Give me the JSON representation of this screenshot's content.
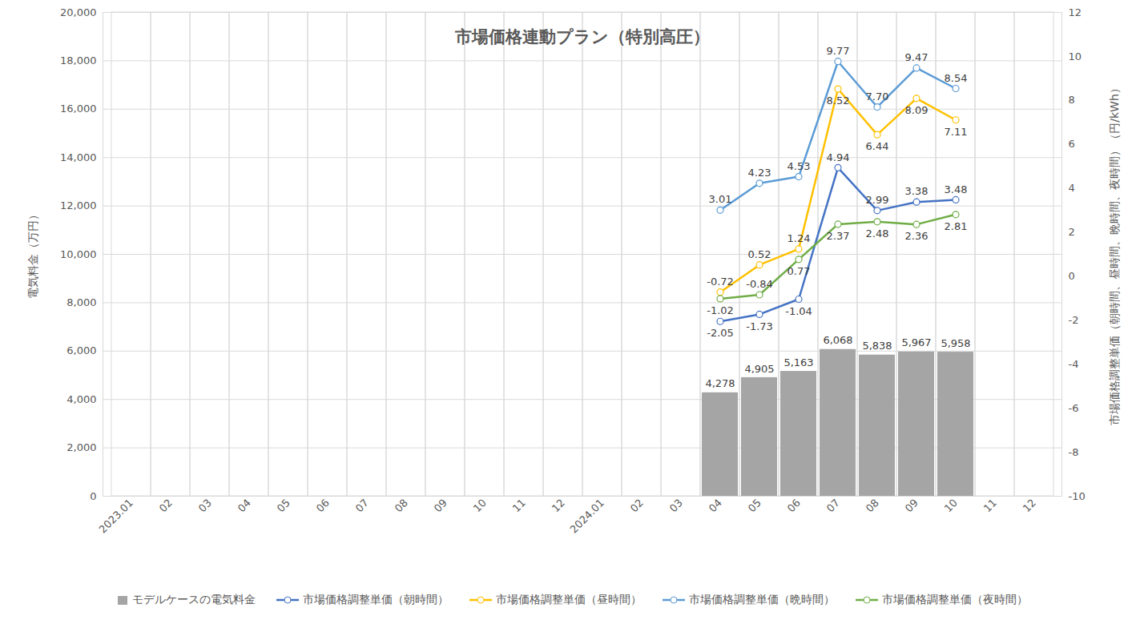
{
  "chart_data": {
    "type": "bar",
    "title": "市場価格連動プラン（特別高圧）",
    "categories": [
      "2023.01",
      "02",
      "03",
      "04",
      "05",
      "06",
      "07",
      "08",
      "09",
      "10",
      "11",
      "12",
      "2024.01",
      "02",
      "03",
      "04",
      "05",
      "06",
      "07",
      "08",
      "09",
      "10",
      "11",
      "12"
    ],
    "ylabel": "電気料金（万円）",
    "y2label": "市場価格調整単価（朝時間、昼時間、晩時間、夜時間）（円/kWh）",
    "ylim": [
      0,
      20000
    ],
    "yticks": [
      0,
      {
        "value": 2000,
        "label": "2,000"
      },
      {
        "value": 4000,
        "label": "4,000"
      },
      {
        "value": 6000,
        "label": "6,000"
      },
      {
        "value": 8000,
        "label": "8,000"
      },
      {
        "value": 10000,
        "label": "10,000"
      },
      {
        "value": 12000,
        "label": "12,000"
      },
      {
        "value": 14000,
        "label": "14,000"
      },
      {
        "value": 16000,
        "label": "16,000"
      },
      {
        "value": 18000,
        "label": "18,000"
      },
      {
        "value": 20000,
        "label": "20,000"
      }
    ],
    "y2lim": [
      -10,
      12
    ],
    "y2ticks": [
      -10,
      -8,
      -6,
      -4,
      -2,
      0,
      2,
      4,
      6,
      8,
      10,
      12
    ],
    "grid": true,
    "legend": "bottom",
    "data_labels": true,
    "series": [
      {
        "name": "モデルケースの電気料金",
        "type": "bar",
        "color": "#a5a5a5",
        "values": [
          null,
          null,
          null,
          null,
          null,
          null,
          null,
          null,
          null,
          null,
          null,
          null,
          null,
          null,
          null,
          4278,
          4905,
          5163,
          6068,
          5838,
          5967,
          5958,
          null,
          null
        ],
        "value_labels": [
          null,
          null,
          null,
          null,
          null,
          null,
          null,
          null,
          null,
          null,
          null,
          null,
          null,
          null,
          null,
          "4,278",
          "4,905",
          "5,163",
          "6,068",
          "5,838",
          "5,967",
          "5,958",
          null,
          null
        ]
      },
      {
        "name": "市場価格調整単価（朝時間）",
        "type": "line",
        "axis": "y2",
        "color": "#4472c4",
        "marker": "circle",
        "values": [
          null,
          null,
          null,
          null,
          null,
          null,
          null,
          null,
          null,
          null,
          null,
          null,
          null,
          null,
          null,
          -2.05,
          -1.73,
          -1.04,
          4.94,
          2.99,
          3.38,
          3.48,
          null,
          null
        ],
        "value_labels": [
          null,
          null,
          null,
          null,
          null,
          null,
          null,
          null,
          null,
          null,
          null,
          null,
          null,
          null,
          null,
          "-2.05",
          "-1.73",
          "-1.04",
          "4.94",
          "2.99",
          "3.38",
          "3.48",
          null,
          null
        ]
      },
      {
        "name": "市場価格調整単価（昼時間）",
        "type": "line",
        "axis": "y2",
        "color": "#ffc000",
        "marker": "circle",
        "values": [
          null,
          null,
          null,
          null,
          null,
          null,
          null,
          null,
          null,
          null,
          null,
          null,
          null,
          null,
          null,
          -0.72,
          0.52,
          1.24,
          8.52,
          6.44,
          8.09,
          7.11,
          null,
          null
        ],
        "value_labels": [
          null,
          null,
          null,
          null,
          null,
          null,
          null,
          null,
          null,
          null,
          null,
          null,
          null,
          null,
          null,
          "-0.72",
          "0.52",
          "1.24",
          "8.52",
          "6.44",
          "8.09",
          "7.11",
          null,
          null
        ]
      },
      {
        "name": "市場価格調整単価（晩時間）",
        "type": "line",
        "axis": "y2",
        "color": "#5b9bd5",
        "marker": "circle",
        "values": [
          null,
          null,
          null,
          null,
          null,
          null,
          null,
          null,
          null,
          null,
          null,
          null,
          null,
          null,
          null,
          3.01,
          4.23,
          4.53,
          9.77,
          7.7,
          9.47,
          8.54,
          null,
          null
        ],
        "value_labels": [
          null,
          null,
          null,
          null,
          null,
          null,
          null,
          null,
          null,
          null,
          null,
          null,
          null,
          null,
          null,
          "3.01",
          "4.23",
          "4.53",
          "9.77",
          "7.70",
          "9.47",
          "8.54",
          null,
          null
        ]
      },
      {
        "name": "市場価格調整単価（夜時間）",
        "type": "line",
        "axis": "y2",
        "color": "#70ad47",
        "marker": "circle",
        "values": [
          null,
          null,
          null,
          null,
          null,
          null,
          null,
          null,
          null,
          null,
          null,
          null,
          null,
          null,
          null,
          -1.02,
          -0.84,
          0.77,
          2.37,
          2.48,
          2.36,
          2.81,
          null,
          null
        ],
        "value_labels": [
          null,
          null,
          null,
          null,
          null,
          null,
          null,
          null,
          null,
          null,
          null,
          null,
          null,
          null,
          null,
          "-1.02",
          "-0.84",
          "0.77",
          "2.37",
          "2.48",
          "2.36",
          "2.81",
          null,
          null
        ]
      }
    ]
  }
}
